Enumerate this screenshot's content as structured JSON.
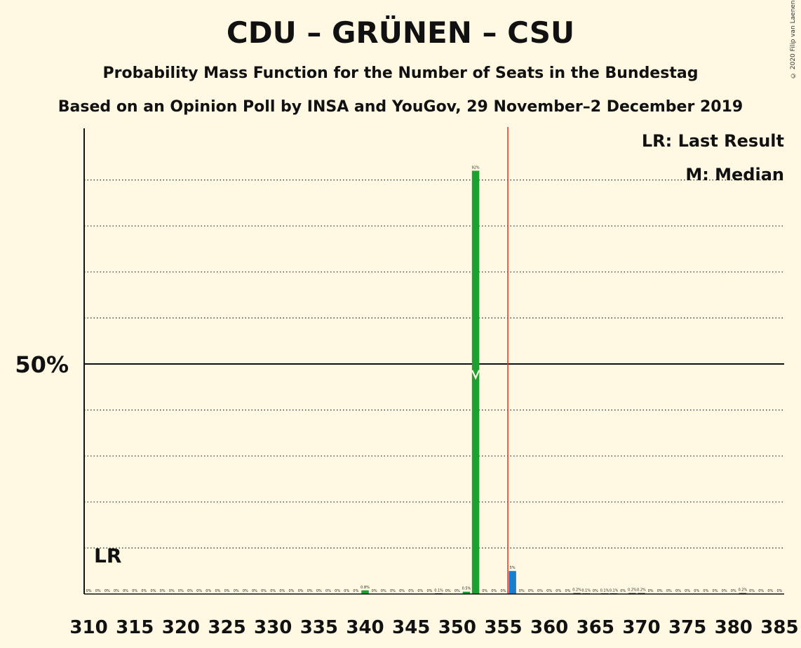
{
  "title": "CDU – GRÜNEN – CSU",
  "subtitle": "Probability Mass Function for the Number of Seats in the Bundestag",
  "subtitle2": "Based on an Opinion Poll by INSA and YouGov, 29 November–2 December 2019",
  "copyright": "© 2020 Filip van Laenen",
  "legend": {
    "lr": "LR: Last Result",
    "median": "M: Median"
  },
  "markers": {
    "lr_label": "LR",
    "median_label": "M"
  },
  "colors": {
    "green": "#1ea031",
    "blue": "#1a7ccc",
    "majority_line": "#e0321e",
    "background": "#fff9e3"
  },
  "chart_data": {
    "type": "bar",
    "x_min": 310,
    "x_max": 385,
    "x_tick_labels": [
      "310",
      "315",
      "320",
      "325",
      "330",
      "335",
      "340",
      "345",
      "350",
      "355",
      "360",
      "365",
      "370",
      "375",
      "380",
      "385"
    ],
    "y_tick_label": "50%",
    "ylim": [
      0,
      100
    ],
    "majority_threshold": 355,
    "last_result": 311,
    "median": 352,
    "bars": [
      {
        "x": 310,
        "v": 0,
        "label": "0%"
      },
      {
        "x": 311,
        "v": 0,
        "label": "0%"
      },
      {
        "x": 312,
        "v": 0,
        "label": "0%"
      },
      {
        "x": 313,
        "v": 0,
        "label": "0%"
      },
      {
        "x": 314,
        "v": 0,
        "label": "0%"
      },
      {
        "x": 315,
        "v": 0,
        "label": "0%"
      },
      {
        "x": 316,
        "v": 0,
        "label": "0%"
      },
      {
        "x": 317,
        "v": 0,
        "label": "0%"
      },
      {
        "x": 318,
        "v": 0,
        "label": "0%"
      },
      {
        "x": 319,
        "v": 0,
        "label": "0%"
      },
      {
        "x": 320,
        "v": 0,
        "label": "0%"
      },
      {
        "x": 321,
        "v": 0,
        "label": "0%"
      },
      {
        "x": 322,
        "v": 0,
        "label": "0%"
      },
      {
        "x": 323,
        "v": 0,
        "label": "0%"
      },
      {
        "x": 324,
        "v": 0,
        "label": "0%"
      },
      {
        "x": 325,
        "v": 0,
        "label": "0%"
      },
      {
        "x": 326,
        "v": 0,
        "label": "0%"
      },
      {
        "x": 327,
        "v": 0,
        "label": "0%"
      },
      {
        "x": 328,
        "v": 0,
        "label": "0%"
      },
      {
        "x": 329,
        "v": 0,
        "label": "0%"
      },
      {
        "x": 330,
        "v": 0,
        "label": "0%"
      },
      {
        "x": 331,
        "v": 0,
        "label": "0%"
      },
      {
        "x": 332,
        "v": 0,
        "label": "0%"
      },
      {
        "x": 333,
        "v": 0,
        "label": "0%"
      },
      {
        "x": 334,
        "v": 0,
        "label": "0%"
      },
      {
        "x": 335,
        "v": 0,
        "label": "0%"
      },
      {
        "x": 336,
        "v": 0,
        "label": "0%"
      },
      {
        "x": 337,
        "v": 0,
        "label": "0%"
      },
      {
        "x": 338,
        "v": 0,
        "label": "0%"
      },
      {
        "x": 339,
        "v": 0,
        "label": "0%"
      },
      {
        "x": 340,
        "v": 0.8,
        "label": "0.8%"
      },
      {
        "x": 341,
        "v": 0,
        "label": "0%"
      },
      {
        "x": 342,
        "v": 0,
        "label": "0%"
      },
      {
        "x": 343,
        "v": 0,
        "label": "0%"
      },
      {
        "x": 344,
        "v": 0,
        "label": "0%"
      },
      {
        "x": 345,
        "v": 0,
        "label": "0%"
      },
      {
        "x": 346,
        "v": 0,
        "label": "0%"
      },
      {
        "x": 347,
        "v": 0,
        "label": "0%"
      },
      {
        "x": 348,
        "v": 0.1,
        "label": "0.1%"
      },
      {
        "x": 349,
        "v": 0,
        "label": "0%"
      },
      {
        "x": 350,
        "v": 0,
        "label": "0%"
      },
      {
        "x": 351,
        "v": 0.5,
        "label": "0.5%"
      },
      {
        "x": 352,
        "v": 92,
        "label": "92%"
      },
      {
        "x": 353,
        "v": 0,
        "label": "0%"
      },
      {
        "x": 354,
        "v": 0,
        "label": "0%"
      },
      {
        "x": 355,
        "v": 0,
        "label": "0%"
      },
      {
        "x": 356,
        "v": 5,
        "label": "5%"
      },
      {
        "x": 357,
        "v": 0,
        "label": "0%"
      },
      {
        "x": 358,
        "v": 0,
        "label": "0%"
      },
      {
        "x": 359,
        "v": 0,
        "label": "0%"
      },
      {
        "x": 360,
        "v": 0,
        "label": "0%"
      },
      {
        "x": 361,
        "v": 0,
        "label": "0%"
      },
      {
        "x": 362,
        "v": 0,
        "label": "0%"
      },
      {
        "x": 363,
        "v": 0.2,
        "label": "0.2%"
      },
      {
        "x": 364,
        "v": 0.1,
        "label": "0.1%"
      },
      {
        "x": 365,
        "v": 0,
        "label": "0%"
      },
      {
        "x": 366,
        "v": 0.1,
        "label": "0.1%"
      },
      {
        "x": 367,
        "v": 0.1,
        "label": "0.1%"
      },
      {
        "x": 368,
        "v": 0,
        "label": "0%"
      },
      {
        "x": 369,
        "v": 0.2,
        "label": "0.2%"
      },
      {
        "x": 370,
        "v": 0.2,
        "label": "0.2%"
      },
      {
        "x": 371,
        "v": 0,
        "label": "0%"
      },
      {
        "x": 372,
        "v": 0,
        "label": "0%"
      },
      {
        "x": 373,
        "v": 0,
        "label": "0%"
      },
      {
        "x": 374,
        "v": 0,
        "label": "0%"
      },
      {
        "x": 375,
        "v": 0,
        "label": "0%"
      },
      {
        "x": 376,
        "v": 0,
        "label": "0%"
      },
      {
        "x": 377,
        "v": 0,
        "label": "0%"
      },
      {
        "x": 378,
        "v": 0,
        "label": "0%"
      },
      {
        "x": 379,
        "v": 0,
        "label": "0%"
      },
      {
        "x": 380,
        "v": 0,
        "label": "0%"
      },
      {
        "x": 381,
        "v": 0.2,
        "label": "0.2%"
      },
      {
        "x": 382,
        "v": 0,
        "label": "0%"
      },
      {
        "x": 383,
        "v": 0,
        "label": "0%"
      },
      {
        "x": 384,
        "v": 0,
        "label": "0%"
      },
      {
        "x": 385,
        "v": 0,
        "label": "0%"
      }
    ]
  }
}
